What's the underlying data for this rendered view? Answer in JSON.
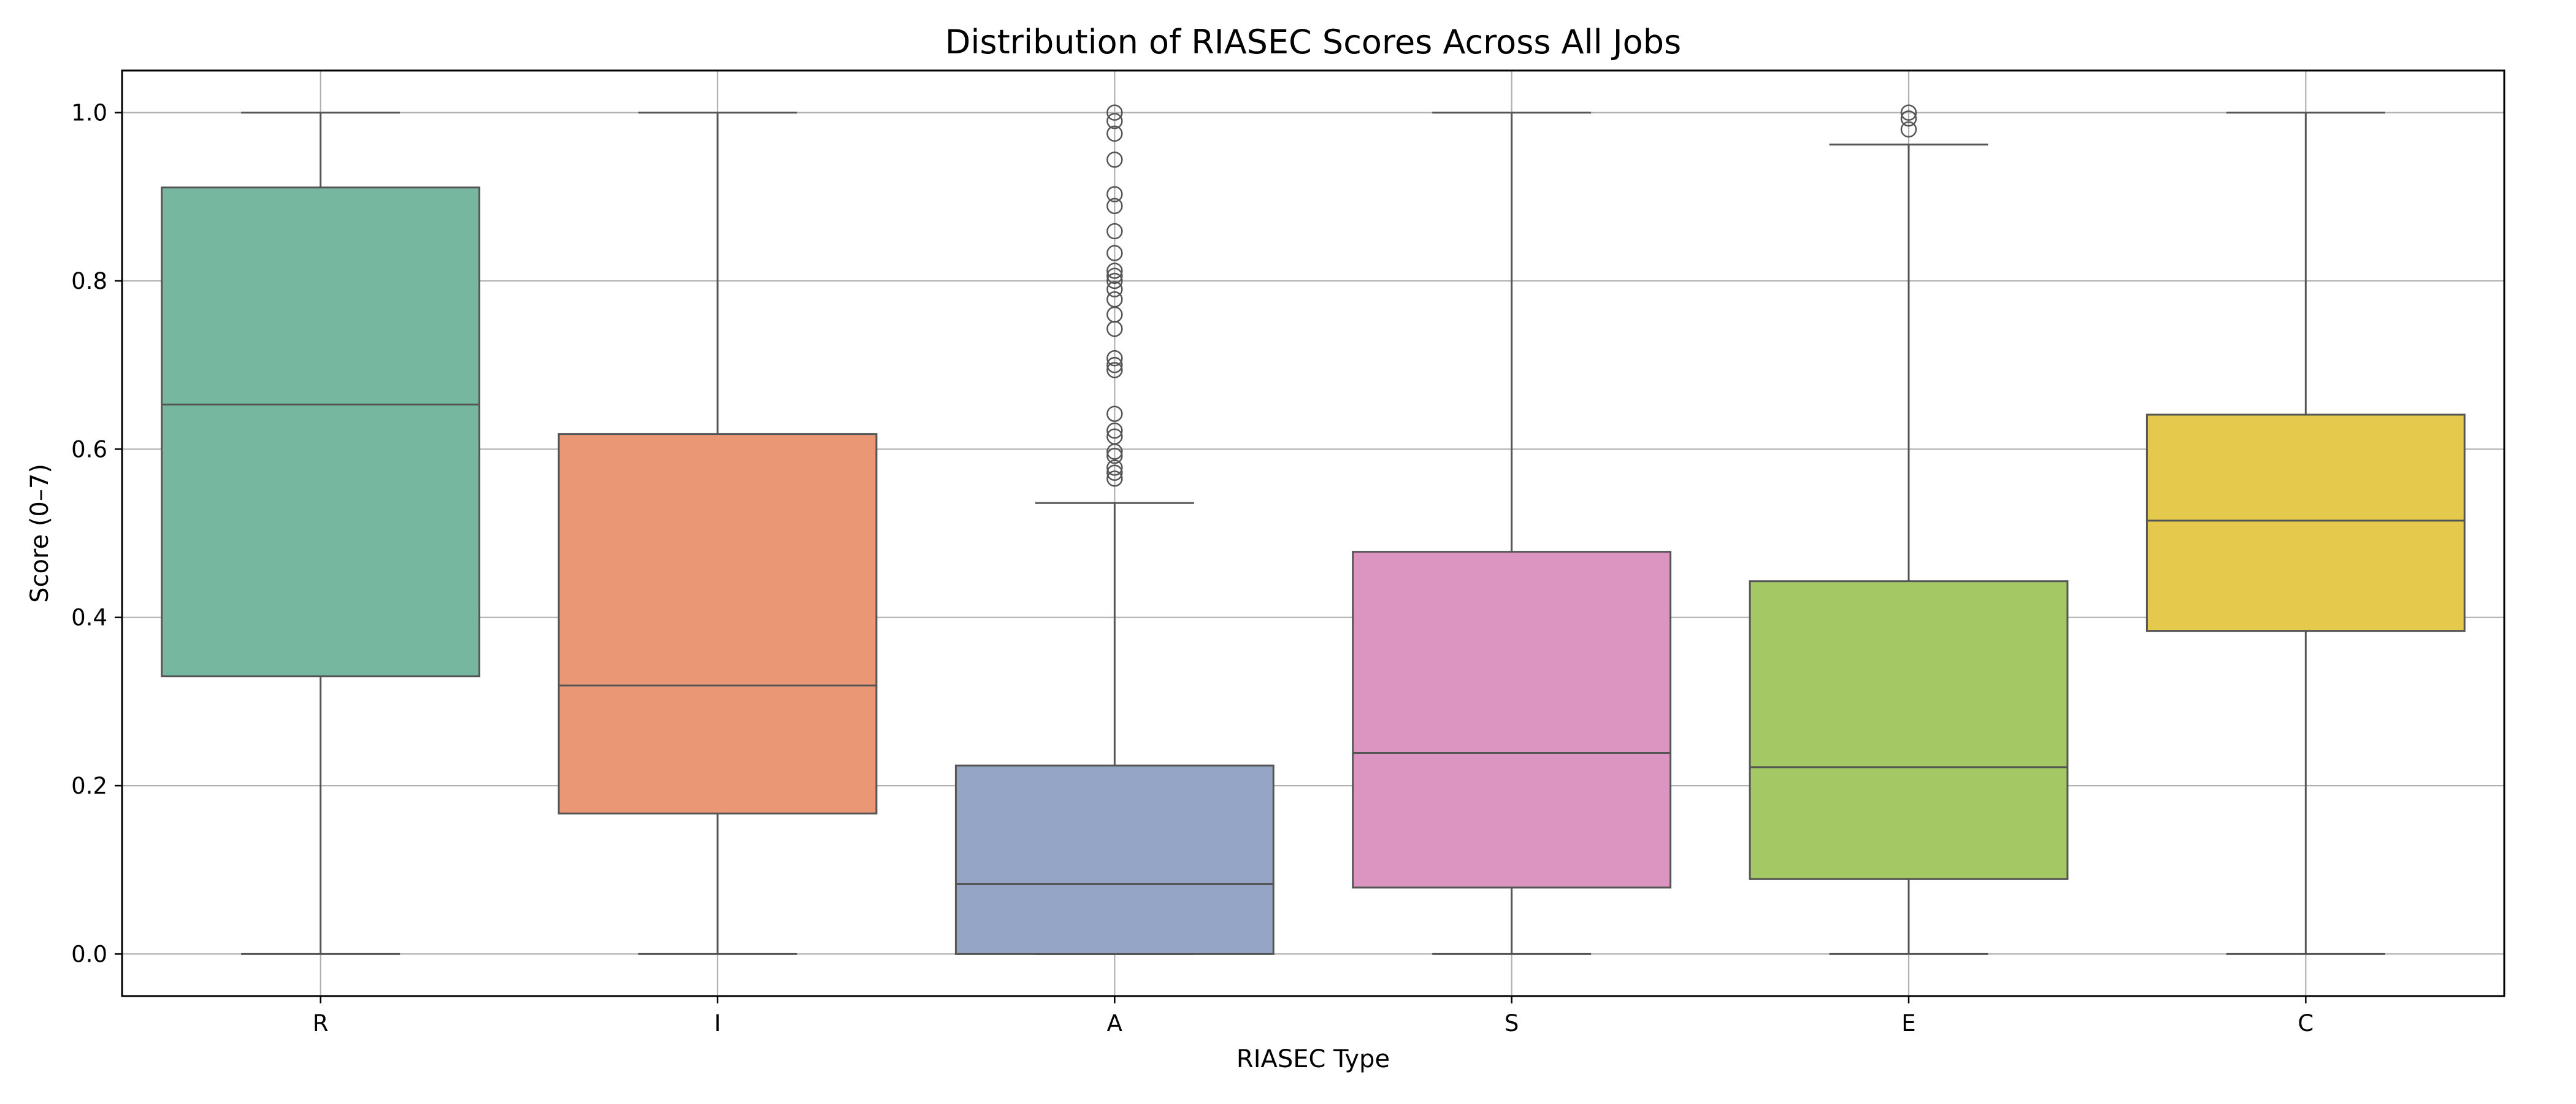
{
  "chart_data": {
    "type": "box",
    "title": "Distribution of RIASEC Scores Across All Jobs",
    "xlabel": "RIASEC Type",
    "ylabel": "Score (0–7)",
    "ylim": [
      -0.05,
      1.05
    ],
    "yticks": [
      0.0,
      0.2,
      0.4,
      0.6,
      0.8,
      1.0
    ],
    "ytick_labels": [
      "0.0",
      "0.2",
      "0.4",
      "0.6",
      "0.8",
      "1.0"
    ],
    "grid": true,
    "categories": [
      "R",
      "I",
      "A",
      "S",
      "E",
      "C"
    ],
    "boxes": [
      {
        "category": "R",
        "whisker_low": 0.0,
        "q1": 0.33,
        "median": 0.653,
        "q3": 0.911,
        "whisker_high": 1.0,
        "outliers": [],
        "color": "#76b7a0"
      },
      {
        "category": "I",
        "whisker_low": 0.0,
        "q1": 0.167,
        "median": 0.319,
        "q3": 0.618,
        "whisker_high": 1.0,
        "outliers": [],
        "color": "#e99774"
      },
      {
        "category": "A",
        "whisker_low": 0.0,
        "q1": 0.0,
        "median": 0.083,
        "q3": 0.224,
        "whisker_high": 0.536,
        "outliers": [
          0.565,
          0.572,
          0.578,
          0.592,
          0.597,
          0.615,
          0.622,
          0.642,
          0.694,
          0.7,
          0.708,
          0.743,
          0.76,
          0.778,
          0.79,
          0.8,
          0.806,
          0.812,
          0.833,
          0.859,
          0.889,
          0.903,
          0.944,
          0.975,
          0.99,
          1.0
        ],
        "color": "#94a5c5"
      },
      {
        "category": "S",
        "whisker_low": 0.0,
        "q1": 0.079,
        "median": 0.239,
        "q3": 0.478,
        "whisker_high": 1.0,
        "outliers": [],
        "color": "#db95c0"
      },
      {
        "category": "E",
        "whisker_low": 0.0,
        "q1": 0.089,
        "median": 0.222,
        "q3": 0.443,
        "whisker_high": 0.962,
        "outliers": [
          0.98,
          0.993,
          1.0
        ],
        "color": "#a3c864"
      },
      {
        "category": "C",
        "whisker_low": 0.0,
        "q1": 0.384,
        "median": 0.515,
        "q3": 0.641,
        "whisker_high": 1.0,
        "outliers": [],
        "color": "#e5c94c"
      }
    ]
  }
}
